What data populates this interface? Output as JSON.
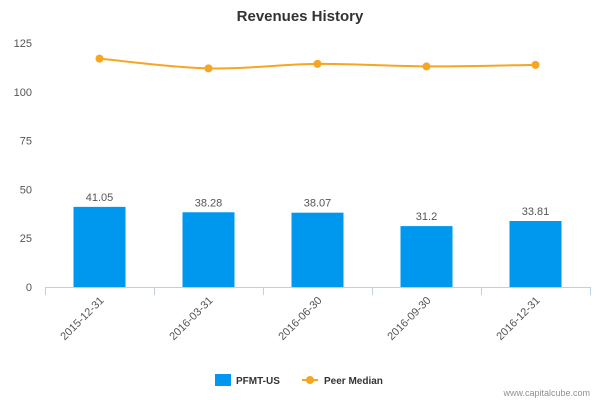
{
  "chart_data": {
    "type": "bar",
    "title": "Revenues History",
    "categories": [
      "2015-12-31",
      "2016-03-31",
      "2016-06-30",
      "2016-09-30",
      "2016-12-31"
    ],
    "series": [
      {
        "name": "PFMT-US",
        "type": "bar",
        "color": "#0098ee",
        "values": [
          41.05,
          38.28,
          38.07,
          31.2,
          33.81
        ],
        "labels": [
          "41.05",
          "38.28",
          "38.07",
          "31.2",
          "33.81"
        ]
      },
      {
        "name": "Peer Median",
        "type": "line",
        "color": "#f5a623",
        "values": [
          117,
          112,
          114.3,
          113,
          113.8
        ]
      }
    ],
    "ylim": [
      0,
      125
    ],
    "yticks": [
      0,
      25,
      50,
      75,
      100,
      125
    ],
    "xlabel": "",
    "ylabel": "",
    "grid": false,
    "legend": "bottom-center"
  },
  "credit": "www.capitalcube.com"
}
